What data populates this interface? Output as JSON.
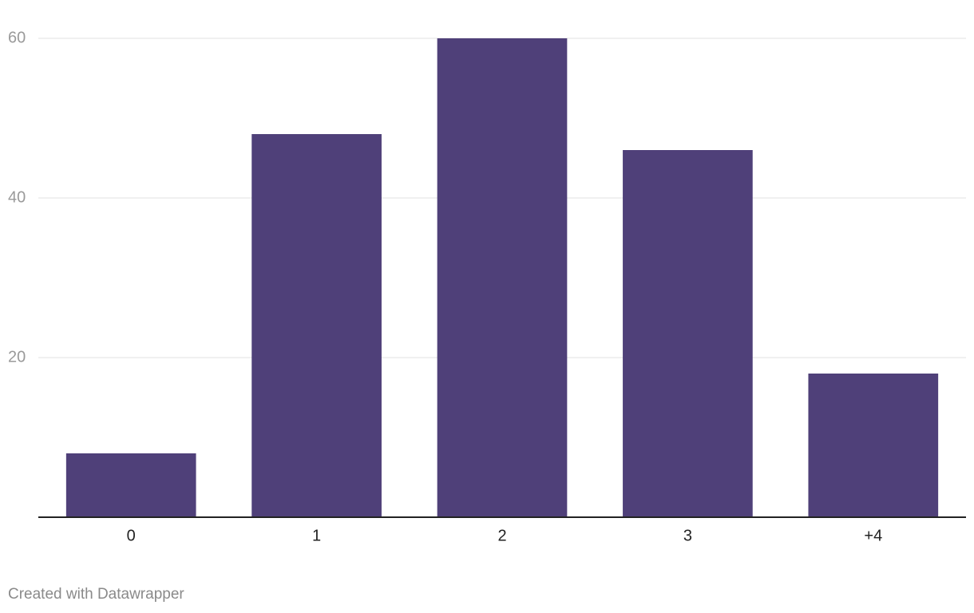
{
  "chart_data": {
    "type": "bar",
    "categories": [
      "0",
      "1",
      "2",
      "3",
      "+4"
    ],
    "values": [
      8,
      48,
      60,
      46,
      18
    ],
    "color": "#4f4079",
    "ylim": [
      0,
      60
    ],
    "yticks": [
      20,
      40,
      60
    ],
    "grid": true,
    "footer": "Created with Datawrapper"
  }
}
